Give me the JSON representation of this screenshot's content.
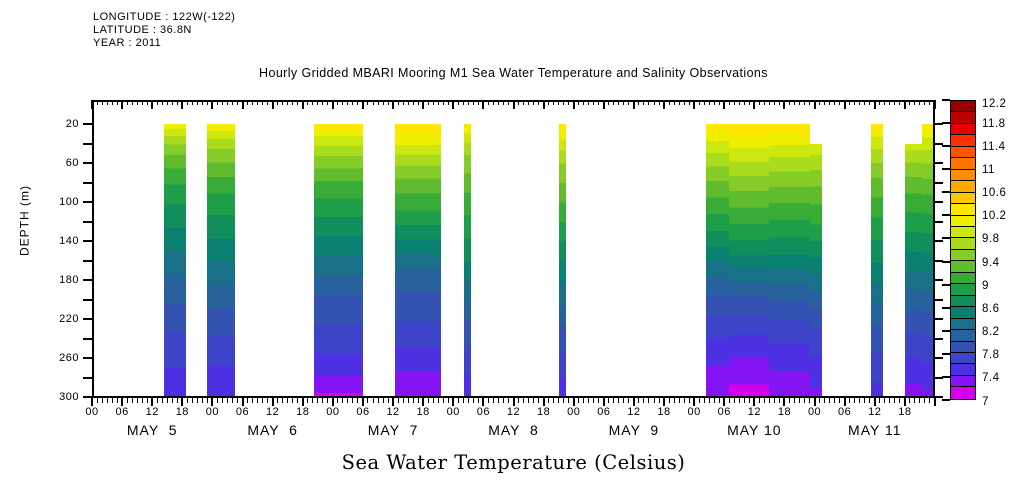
{
  "header": {
    "lines": [
      "LONGITUDE : 122W(-122)",
      "LATITUDE : 36.8N",
      "YEAR : 2011"
    ]
  },
  "chart_data": {
    "type": "heatmap",
    "title": "Hourly Gridded MBARI Mooring M1 Sea Water Temperature and Salinity Observations",
    "caption": "Sea Water Temperature (Celsius)",
    "background": "#ffffff",
    "axis_color": "#000000",
    "x_axis": {
      "start": "MAY 5 00:00",
      "end": "MAY 12 00:00",
      "total_hours": 168,
      "minor_tick_hours": 1,
      "major_tick_hours": 6,
      "hour_labels_per_day": [
        "00",
        "06",
        "12",
        "18"
      ],
      "day_labels": [
        "MAY  5",
        "MAY  6",
        "MAY  7",
        "MAY  8",
        "MAY  9",
        "MAY 10",
        "MAY 11"
      ]
    },
    "y_axis": {
      "title": "DEPTH (m)",
      "min_depth": 20,
      "max_depth": 300,
      "tick_interval": 20,
      "label_interval": 40,
      "labels": [
        "20",
        "60",
        "100",
        "140",
        "180",
        "220",
        "260",
        "300"
      ],
      "inverted": true
    },
    "colorbar": {
      "min": 7.0,
      "max": 12.2,
      "cell_step": 0.2,
      "labels_top_to_bottom": [
        "12.2",
        "11.8",
        "11.4",
        "11",
        "10.6",
        "10.2",
        "9.8",
        "9.4",
        "9",
        "8.6",
        "8.2",
        "7.8",
        "7.4",
        "7"
      ],
      "colors_low_to_high": [
        "#D400EE",
        "#8514F4",
        "#4C30E2",
        "#3E44C8",
        "#3452B2",
        "#28629C",
        "#1A7088",
        "#0C8070",
        "#108E5C",
        "#1E9E48",
        "#38AC36",
        "#60BC2E",
        "#86CC28",
        "#AADC1E",
        "#CCE810",
        "#EEF000",
        "#FFE600",
        "#FFC600",
        "#FFAA00",
        "#FF8E00",
        "#FF7400",
        "#FF5400",
        "#FF3000",
        "#E80000",
        "#BB0000",
        "#980000"
      ]
    },
    "segments": [
      {
        "name": "may5-afternoon",
        "start_hour": 14.3,
        "end_hour": 18.7,
        "top_depth": 20,
        "profile": [
          [
            20,
            10.15
          ],
          [
            28,
            9.9
          ],
          [
            45,
            9.5
          ],
          [
            65,
            9.2
          ],
          [
            90,
            8.9
          ],
          [
            120,
            8.65
          ],
          [
            150,
            8.4
          ],
          [
            180,
            8.15
          ],
          [
            210,
            7.95
          ],
          [
            240,
            7.75
          ],
          [
            270,
            7.6
          ],
          [
            300,
            7.45
          ]
        ]
      },
      {
        "name": "may5-6-night",
        "start_hour": 23.0,
        "end_hour": 28.5,
        "top_depth": 20,
        "profile": [
          [
            20,
            10.2
          ],
          [
            30,
            9.9
          ],
          [
            48,
            9.55
          ],
          [
            70,
            9.25
          ],
          [
            95,
            8.95
          ],
          [
            125,
            8.7
          ],
          [
            155,
            8.45
          ],
          [
            185,
            8.2
          ],
          [
            215,
            7.95
          ],
          [
            245,
            7.75
          ],
          [
            275,
            7.55
          ],
          [
            300,
            7.4
          ]
        ]
      },
      {
        "name": "may6-7-night",
        "start_hour": 44.2,
        "end_hour": 54.0,
        "top_depth": 20,
        "profile": [
          [
            20,
            10.35
          ],
          [
            32,
            10.0
          ],
          [
            52,
            9.6
          ],
          [
            78,
            9.2
          ],
          [
            105,
            8.9
          ],
          [
            135,
            8.6
          ],
          [
            165,
            8.3
          ],
          [
            195,
            8.0
          ],
          [
            225,
            7.8
          ],
          [
            255,
            7.6
          ],
          [
            278,
            7.4
          ],
          [
            300,
            7.15
          ]
        ]
      },
      {
        "name": "may7-afternoon",
        "start_hour": 60.4,
        "end_hour": 69.6,
        "top_depth": 20,
        "profile": [
          [
            20,
            10.39
          ],
          [
            36,
            10.1
          ],
          [
            56,
            9.7
          ],
          [
            82,
            9.3
          ],
          [
            108,
            9.0
          ],
          [
            138,
            8.6
          ],
          [
            168,
            8.2
          ],
          [
            198,
            7.95
          ],
          [
            230,
            7.75
          ],
          [
            262,
            7.5
          ],
          [
            285,
            7.3
          ],
          [
            300,
            7.2
          ]
        ]
      },
      {
        "name": "may8-early",
        "start_hour": 74.1,
        "end_hour": 75.6,
        "top_depth": 20,
        "profile": [
          [
            20,
            10.3
          ],
          [
            32,
            9.9
          ],
          [
            55,
            9.55
          ],
          [
            90,
            9.2
          ],
          [
            125,
            8.9
          ],
          [
            160,
            8.6
          ],
          [
            195,
            8.25
          ],
          [
            225,
            7.95
          ],
          [
            255,
            7.75
          ],
          [
            280,
            7.55
          ],
          [
            300,
            7.4
          ]
        ]
      },
      {
        "name": "may8-late",
        "start_hour": 93.1,
        "end_hour": 94.5,
        "top_depth": 20,
        "profile": [
          [
            20,
            10.38
          ],
          [
            33,
            10.05
          ],
          [
            55,
            9.65
          ],
          [
            90,
            9.3
          ],
          [
            125,
            8.95
          ],
          [
            160,
            8.6
          ],
          [
            195,
            8.3
          ],
          [
            225,
            8.0
          ],
          [
            255,
            7.8
          ],
          [
            280,
            7.6
          ],
          [
            300,
            7.5
          ]
        ]
      },
      {
        "name": "may10-a",
        "start_hour": 122.4,
        "end_hour": 127.0,
        "top_depth": 20,
        "profile": [
          [
            20,
            10.35
          ],
          [
            34,
            10.05
          ],
          [
            52,
            9.75
          ],
          [
            78,
            9.4
          ],
          [
            108,
            9.05
          ],
          [
            138,
            8.7
          ],
          [
            165,
            8.35
          ],
          [
            190,
            8.05
          ],
          [
            215,
            7.8
          ],
          [
            245,
            7.55
          ],
          [
            275,
            7.35
          ],
          [
            300,
            7.25
          ]
        ]
      },
      {
        "name": "may10-b",
        "start_hour": 127.0,
        "end_hour": 135.0,
        "top_depth": 20,
        "profile": [
          [
            20,
            10.39
          ],
          [
            40,
            10.05
          ],
          [
            62,
            9.75
          ],
          [
            88,
            9.4
          ],
          [
            118,
            9.05
          ],
          [
            148,
            8.7
          ],
          [
            175,
            8.3
          ],
          [
            200,
            7.95
          ],
          [
            225,
            7.7
          ],
          [
            252,
            7.45
          ],
          [
            280,
            7.25
          ],
          [
            300,
            7.1
          ]
        ]
      },
      {
        "name": "may10-c",
        "start_hour": 135.0,
        "end_hour": 143.1,
        "top_depth": 20,
        "profile": [
          [
            20,
            10.38
          ],
          [
            38,
            10.05
          ],
          [
            60,
            9.7
          ],
          [
            88,
            9.35
          ],
          [
            118,
            9.0
          ],
          [
            150,
            8.65
          ],
          [
            180,
            8.25
          ],
          [
            210,
            7.9
          ],
          [
            238,
            7.65
          ],
          [
            265,
            7.45
          ],
          [
            300,
            7.25
          ]
        ]
      },
      {
        "name": "may10-11-sliver",
        "start_hour": 143.1,
        "end_hour": 145.5,
        "top_depth": 40,
        "profile": [
          [
            40,
            9.95
          ],
          [
            62,
            9.65
          ],
          [
            92,
            9.3
          ],
          [
            122,
            9.0
          ],
          [
            152,
            8.65
          ],
          [
            182,
            8.3
          ],
          [
            212,
            7.95
          ],
          [
            242,
            7.7
          ],
          [
            272,
            7.5
          ],
          [
            300,
            7.35
          ]
        ]
      },
      {
        "name": "may11-midday",
        "start_hour": 155.2,
        "end_hour": 157.6,
        "top_depth": 20,
        "profile": [
          [
            20,
            10.35
          ],
          [
            30,
            10.05
          ],
          [
            48,
            9.75
          ],
          [
            75,
            9.4
          ],
          [
            110,
            9.05
          ],
          [
            145,
            8.75
          ],
          [
            178,
            8.45
          ],
          [
            208,
            8.15
          ],
          [
            238,
            7.9
          ],
          [
            268,
            7.7
          ],
          [
            300,
            7.5
          ]
        ]
      },
      {
        "name": "may11-evening-left",
        "start_hour": 162.0,
        "end_hour": 165.4,
        "top_depth": 40,
        "profile": [
          [
            40,
            9.9
          ],
          [
            65,
            9.5
          ],
          [
            95,
            9.15
          ],
          [
            125,
            8.85
          ],
          [
            155,
            8.55
          ],
          [
            185,
            8.25
          ],
          [
            215,
            7.95
          ],
          [
            245,
            7.7
          ],
          [
            275,
            7.5
          ],
          [
            300,
            7.25
          ]
        ]
      },
      {
        "name": "may11-evening-right",
        "start_hour": 165.4,
        "end_hour": 167.6,
        "top_depth": 20,
        "profile": [
          [
            20,
            10.3
          ],
          [
            36,
            9.95
          ],
          [
            60,
            9.6
          ],
          [
            92,
            9.2
          ],
          [
            122,
            8.9
          ],
          [
            152,
            8.6
          ],
          [
            182,
            8.3
          ],
          [
            212,
            8.0
          ],
          [
            242,
            7.75
          ],
          [
            272,
            7.55
          ],
          [
            300,
            7.35
          ]
        ]
      }
    ]
  }
}
